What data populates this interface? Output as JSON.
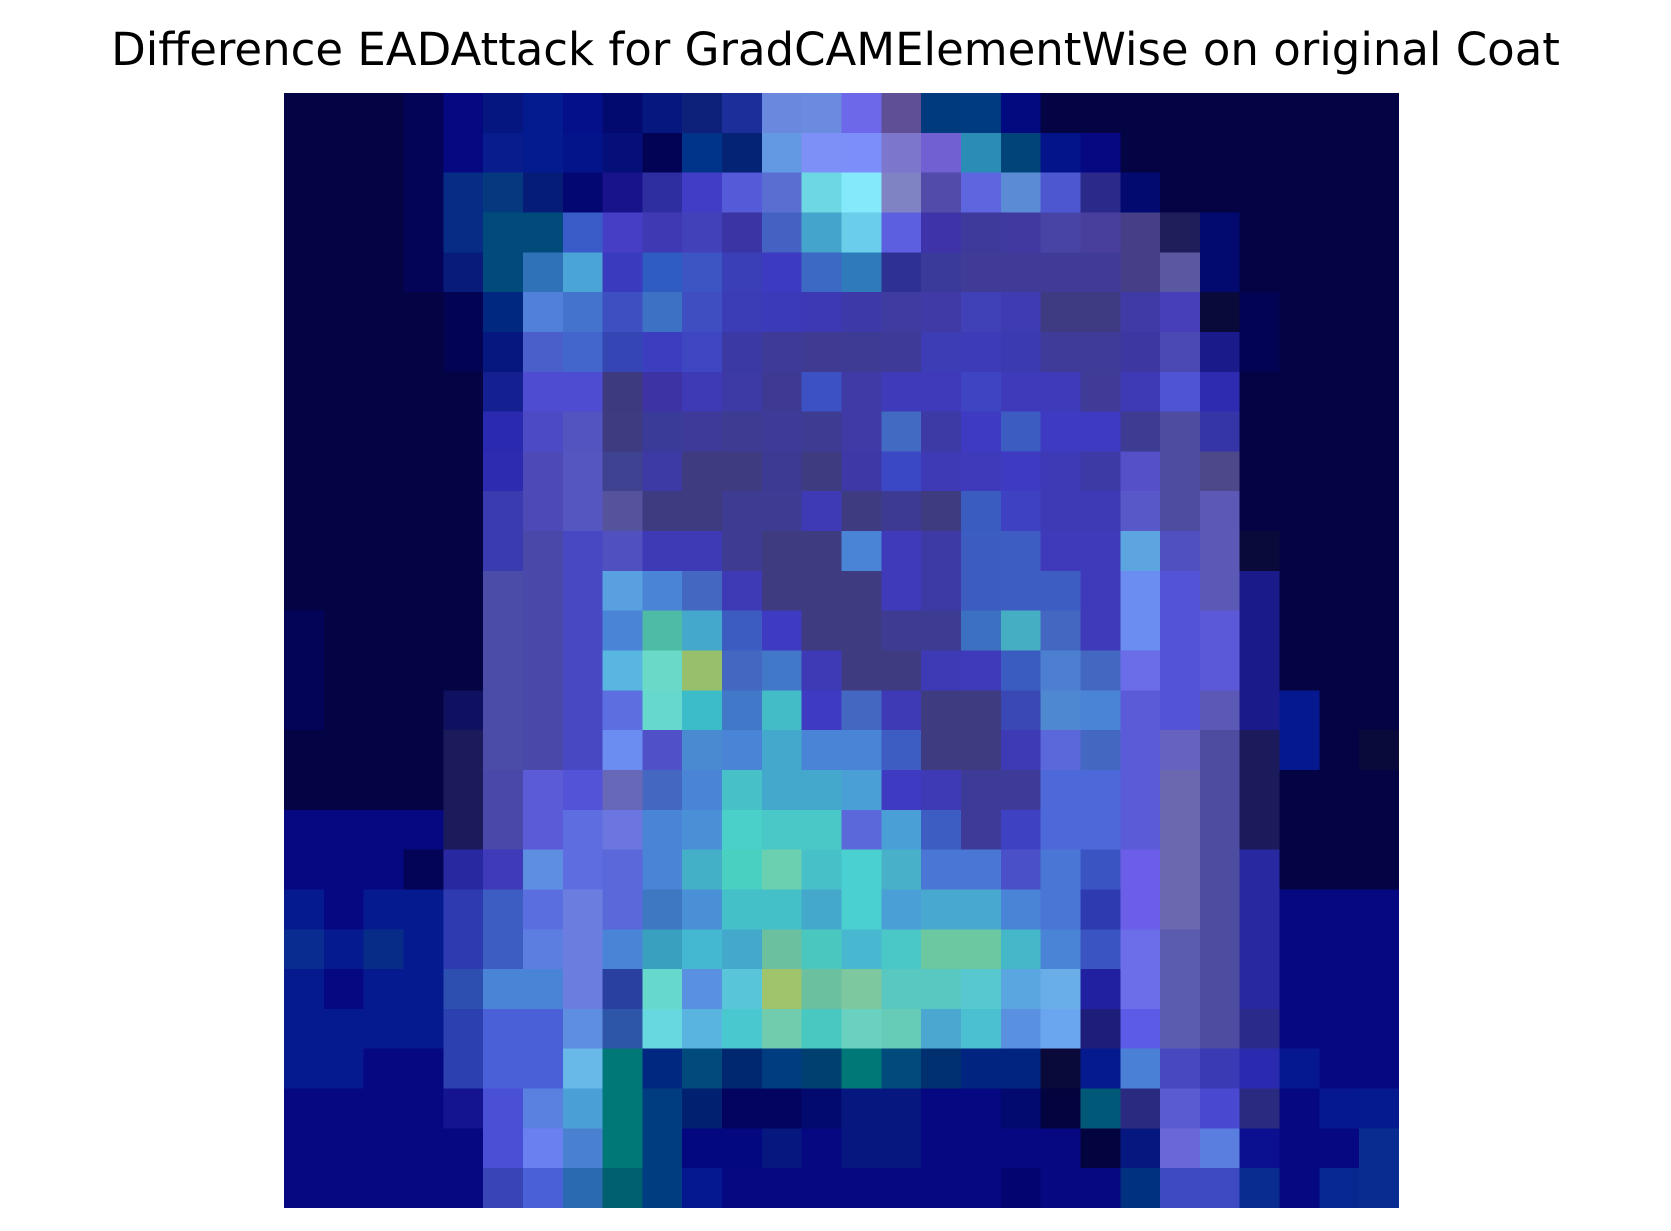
{
  "title": "Difference EADAttack for GradCAMElementWise on original Coat",
  "image": {
    "rows": 28,
    "cols": 28,
    "pixels": [
      [
        "040444",
        "040444",
        "040444",
        "030357",
        "050880",
        "061680",
        "041b8f",
        "041089",
        "020a70",
        "061880",
        "0d207a",
        "1c2e9a",
        "6a88de",
        "6b8be0",
        "6d68e9",
        "5f4f96",
        "003a7e",
        "003b82",
        "020a80",
        "040444",
        "040444",
        "040444",
        "040444",
        "040444",
        "040444",
        "040444",
        "040444",
        "040444"
      ],
      [
        "040444",
        "040444",
        "040444",
        "030357",
        "050880",
        "081c8d",
        "041b8f",
        "03148b",
        "050f7a",
        "030355",
        "00338a",
        "042375",
        "6398e3",
        "7d90f8",
        "7c8ef9",
        "7c77cd",
        "7060d2",
        "2b8db5",
        "00447a",
        "03148b",
        "050880",
        "040444",
        "040444",
        "040444",
        "040444",
        "040444",
        "040444",
        "040444"
      ],
      [
        "040444",
        "040444",
        "040444",
        "030357",
        "062c86",
        "04397f",
        "051d76",
        "030771",
        "18128b",
        "2f2ea0",
        "423dc6",
        "545ad8",
        "5a6ed1",
        "6dd8e4",
        "84eafb",
        "7f82c3",
        "524ba9",
        "5d66df",
        "5a8bd4",
        "4d58d0",
        "2b2a8a",
        "020a70",
        "040444",
        "040444",
        "040444",
        "040444",
        "040444",
        "040444"
      ],
      [
        "040444",
        "040444",
        "040444",
        "030357",
        "062c86",
        "004a7c",
        "004a7c",
        "3a5cc9",
        "463fc5",
        "3f39b3",
        "4341ba",
        "3b34a4",
        "4462c2",
        "44a4cb",
        "6acde9",
        "5c5fe0",
        "3e33a8",
        "3e3a9b",
        "3f39a0",
        "4744a5",
        "483f9d",
        "463f88",
        "1e1e5a",
        "020a70",
        "040444",
        "040444",
        "040444",
        "040444"
      ],
      [
        "040444",
        "040444",
        "040444",
        "030357",
        "081b7b",
        "004a7c",
        "2f72b8",
        "4aa5d6",
        "3a3abf",
        "2f5cc0",
        "3c55c2",
        "3a3fb8",
        "3c3ac0",
        "3c69c3",
        "2f7aba",
        "2f3192",
        "3a3a9b",
        "3f3b96",
        "3f3b96",
        "3f3b96",
        "3f3b96",
        "463f88",
        "5a58a0",
        "020a70",
        "040444",
        "040444",
        "040444",
        "040444"
      ],
      [
        "040444",
        "040444",
        "040444",
        "040444",
        "030353",
        "002880",
        "5080d9",
        "4373cd",
        "3e4fc2",
        "3c71c3",
        "3f4fc2",
        "3b3db7",
        "3b3ab9",
        "3d38b3",
        "3e39a8",
        "3f3b9f",
        "3f3aa5",
        "4040b7",
        "3f3cb1",
        "3f3b83",
        "3f3b83",
        "3f3aa5",
        "473fb9",
        "0a0a3a",
        "030353",
        "040444",
        "040444",
        "040444"
      ],
      [
        "040444",
        "040444",
        "040444",
        "040444",
        "030353",
        "061880",
        "4a5fc9",
        "4366cc",
        "3546b4",
        "3c3dbf",
        "3e46c2",
        "3b3aa5",
        "3e3b98",
        "3f3b93",
        "3e3b94",
        "3e3b98",
        "3d3db5",
        "3e3bb9",
        "3c3ab1",
        "3f3b98",
        "3f3b98",
        "3d38a1",
        "4b4ab5",
        "1b1a8a",
        "030353",
        "040444",
        "040444",
        "040444"
      ],
      [
        "040444",
        "040444",
        "040444",
        "040444",
        "040444",
        "14208f",
        "4e4cd0",
        "4e4cd0",
        "3e3a80",
        "3d33a5",
        "3e3ab5",
        "3e3aa5",
        "3e3a93",
        "3c52c4",
        "3f3aa5",
        "3f3ab9",
        "3f3ab9",
        "3f44c2",
        "3f3ab9",
        "3f3ab9",
        "3f3b96",
        "3e3ab5",
        "4f54d4",
        "2f2bb0",
        "040444",
        "040444",
        "040444",
        "040444"
      ],
      [
        "040444",
        "040444",
        "040444",
        "040444",
        "040444",
        "2a2ab0",
        "4d4ac6",
        "5454c0",
        "3e3b80",
        "3a3a99",
        "3e3a99",
        "3e3b93",
        "3e3b98",
        "3e3b93",
        "3f3aa5",
        "426ac3",
        "3e3aa5",
        "3e3ac2",
        "3c5cc2",
        "3f3ac2",
        "3f3ac2",
        "3e3b93",
        "4d4ca1",
        "3535a8",
        "040444",
        "040444",
        "040444",
        "040444"
      ],
      [
        "040444",
        "040444",
        "040444",
        "040444",
        "040444",
        "2d2cb0",
        "4d4ab8",
        "5656c0",
        "3e4290",
        "3d3aa5",
        "3e3b80",
        "3e3b80",
        "3d3a93",
        "3e3b80",
        "3d38a5",
        "3a48c5",
        "3e3ab5",
        "3e3ab9",
        "3e3ac2",
        "3e3ab5",
        "3e3aa5",
        "5550c8",
        "4d4ca1",
        "4c4889",
        "040444",
        "040444",
        "040444",
        "040444"
      ],
      [
        "040444",
        "040444",
        "040444",
        "040444",
        "040444",
        "3b3bb0",
        "4d4ab8",
        "5656c0",
        "56539d",
        "3e3b80",
        "3e3b80",
        "3e3b93",
        "3e3b93",
        "3e3ab5",
        "3e3b80",
        "3d3a93",
        "3e3b80",
        "3a5cc0",
        "3e42c2",
        "3e3ab5",
        "3e3ab5",
        "5858c9",
        "4d4ca1",
        "5b59b5",
        "040444",
        "040444",
        "040444",
        "040444"
      ],
      [
        "040444",
        "040444",
        "040444",
        "040444",
        "040444",
        "3b3bb0",
        "4a48a8",
        "4848c2",
        "5050c0",
        "3e3ab5",
        "3e3ab5",
        "3e3b93",
        "3e3b80",
        "3e3b80",
        "4a84d6",
        "3e3ab9",
        "3e3aa5",
        "3c5cc2",
        "3e5dc2",
        "3e3ab9",
        "3e3ab9",
        "5ca5e0",
        "5050c0",
        "5b59b5",
        "0a0a3a",
        "040444",
        "040444",
        "040444"
      ],
      [
        "040444",
        "040444",
        "040444",
        "040444",
        "040444",
        "4b4ca8",
        "4a48a8",
        "4848c2",
        "58a0e0",
        "4a84d6",
        "4468c2",
        "3e3ab5",
        "3e3b80",
        "3e3b80",
        "3e3b80",
        "3e3ab9",
        "3e3aa5",
        "3c5cc2",
        "3e5dc2",
        "3e5dc2",
        "3e3ab9",
        "6b8cf0",
        "5353d8",
        "5b59b5",
        "1b1a8a",
        "040444",
        "040444",
        "040444"
      ],
      [
        "030357",
        "040444",
        "040444",
        "040444",
        "040444",
        "4b4ca8",
        "4a48a8",
        "4848c2",
        "4a84d6",
        "4dbba6",
        "44a8cc",
        "3c5cc2",
        "3e3ac2",
        "3e3b80",
        "3e3b80",
        "3e3b93",
        "3e3b93",
        "3c70c0",
        "46aec2",
        "4468c2",
        "3e3ab9",
        "6b8cf0",
        "5353d8",
        "5b59d8",
        "1b1a8a",
        "040444",
        "040444",
        "040444"
      ],
      [
        "030357",
        "040444",
        "040444",
        "040444",
        "040444",
        "4b4ca8",
        "4a48a8",
        "4848c2",
        "58b6e0",
        "6bd9c8",
        "98c06c",
        "4468c2",
        "4178c8",
        "3e3ab5",
        "3e3b80",
        "3e3b80",
        "3e3ab5",
        "3e3ab9",
        "3a5cc0",
        "4d7fd0",
        "4468c2",
        "6b6ce8",
        "5353d8",
        "5b59d8",
        "1b1a8a",
        "040444",
        "040444",
        "040444"
      ],
      [
        "030357",
        "040444",
        "040444",
        "040444",
        "101060",
        "4b4ca8",
        "4a48a8",
        "4848c2",
        "5c6ee0",
        "66d9cc",
        "3cbcc8",
        "4178c8",
        "43bcc8",
        "3e3ac2",
        "4468c2",
        "3e3ab5",
        "3e3b80",
        "3e3b80",
        "3a48b5",
        "4d88d0",
        "4a84d6",
        "5b5bd8",
        "5353d8",
        "5b59b5",
        "1b1a8a",
        "061890",
        "040444",
        "040444"
      ],
      [
        "040444",
        "040444",
        "040444",
        "040444",
        "1b1a5a",
        "4b4ca8",
        "4a48a8",
        "4848c2",
        "6b8cf0",
        "5050c8",
        "4a8ad0",
        "4a84d6",
        "44a8cc",
        "4a84d6",
        "4a84d6",
        "3e5dc2",
        "3e3b80",
        "3e3b80",
        "3e3ab5",
        "5b68d9",
        "4468c2",
        "5b5bd8",
        "6662c0",
        "4d4ca1",
        "1b1a5a",
        "061890",
        "040444",
        "0a0a3a"
      ],
      [
        "040444",
        "040444",
        "040444",
        "040444",
        "1b1a5a",
        "4a48a8",
        "5b5bd8",
        "5353d8",
        "6868b8",
        "4468c2",
        "4a84d6",
        "48c0c8",
        "44a8cc",
        "44a8cc",
        "4aa0d6",
        "3e3ac2",
        "3e3ab5",
        "3e3b98",
        "3e3b98",
        "4d68d9",
        "4d68d9",
        "5b5bd8",
        "6b68b0",
        "4d4ca1",
        "1b1a5a",
        "040444",
        "040444",
        "040444"
      ],
      [
        "050880",
        "050880",
        "050880",
        "050880",
        "1b1a5a",
        "4a48a8",
        "5b5bd8",
        "5e6ee0",
        "6b76e0",
        "4a84d6",
        "4a90d6",
        "4ad0c8",
        "4ac8c8",
        "4ac8c8",
        "5b68d9",
        "4aa0d6",
        "3e5dc2",
        "3e3b98",
        "3e42c2",
        "4d68d9",
        "4d68d9",
        "5b5bd8",
        "6b68b0",
        "4d4ca1",
        "1b1a5a",
        "040444",
        "040444",
        "040444"
      ],
      [
        "050880",
        "050880",
        "050880",
        "030357",
        "2828a0",
        "3e3ab9",
        "5e8ee0",
        "5e6ee0",
        "5b68d9",
        "4a84d6",
        "44b0c8",
        "4ad0c0",
        "6bd0b0",
        "48c0c8",
        "4ad0d0",
        "48b0c8",
        "4a76d6",
        "4a76d6",
        "4a50c8",
        "4a76d6",
        "3a55c2",
        "6b5ee8",
        "6b68b0",
        "4d4ca1",
        "2828a0",
        "040444",
        "040444",
        "040444"
      ],
      [
        "061a90",
        "050880",
        "061a90",
        "061a90",
        "2d3ab0",
        "3e5dc2",
        "5b6ee0",
        "6b7ee0",
        "5b68d9",
        "3e78c2",
        "4a90d6",
        "44c0c8",
        "44c0c8",
        "44a8cc",
        "4ad0d0",
        "4aa0d6",
        "48a8d0",
        "48a8d0",
        "4a84d6",
        "4a76d6",
        "2d3ab0",
        "6b5ee8",
        "6b68b0",
        "4d4ca1",
        "2828a0",
        "050880",
        "050880",
        "050880"
      ],
      [
        "082c90",
        "061a90",
        "062c88",
        "061a90",
        "2d3ab0",
        "3e5dc2",
        "5b7ee0",
        "6b7ee0",
        "4a84d6",
        "3aa0c0",
        "44b8d0",
        "44a8cc",
        "6bc0a0",
        "4ac8c0",
        "48b8d0",
        "4ac8c8",
        "6bc8a0",
        "6bc8a0",
        "44b8c8",
        "4a84d6",
        "3a55c2",
        "6b6ee8",
        "5b5bb0",
        "4d4ca1",
        "2828a0",
        "050880",
        "050880",
        "050880"
      ],
      [
        "061a90",
        "050880",
        "061a90",
        "061a90",
        "2d50b0",
        "4a84d6",
        "4a84d6",
        "6b7ee0",
        "2a40a0",
        "66d9cc",
        "5a90e0",
        "58c6d8",
        "a0c46c",
        "6bc0a0",
        "7ec8a0",
        "58c8c0",
        "58c8c0",
        "58c8d0",
        "5aa6e0",
        "6aaee8",
        "2020a0",
        "6b6ee8",
        "5b5bb0",
        "4d4ca1",
        "2828a0",
        "050880",
        "050880",
        "050880"
      ],
      [
        "061a90",
        "061a90",
        "061a90",
        "061a90",
        "2d40b0",
        "4a60d6",
        "4a60d6",
        "5e8ee0",
        "2d55a8",
        "68d8e0",
        "5ab4e0",
        "4ac8d0",
        "70ccac",
        "48c8c0",
        "6ad0c0",
        "66ccb8",
        "4aa8d0",
        "4ac0d0",
        "5a90e0",
        "6aa6f0",
        "1e1e7a",
        "5b5be8",
        "5b5bb0",
        "4d4ca1",
        "2a2a8a",
        "050880",
        "050880",
        "050880"
      ],
      [
        "061a90",
        "061a90",
        "050880",
        "050880",
        "2d40b0",
        "4a60d6",
        "4a60d6",
        "68b8e8",
        "007878",
        "002880",
        "004a7c",
        "002870",
        "003d80",
        "004070",
        "007878",
        "004a7c",
        "003070",
        "002480",
        "002480",
        "0a0a3a",
        "061a90",
        "4a80d6",
        "4848c0",
        "3a3ab5",
        "2a2ab0",
        "061890",
        "050880",
        "050880"
      ],
      [
        "050880",
        "050880",
        "050880",
        "050880",
        "141490",
        "4a50d6",
        "5a80e0",
        "4aa0d6",
        "007878",
        "003d80",
        "002070",
        "020460",
        "020460",
        "020a70",
        "061880",
        "061880",
        "050880",
        "050880",
        "020a70",
        "030340",
        "005878",
        "2a2a80",
        "5b5bd0",
        "4848d0",
        "2a2a80",
        "050880",
        "061890",
        "061a90"
      ],
      [
        "050880",
        "050880",
        "050880",
        "050880",
        "050880",
        "4a50d6",
        "6a80f0",
        "4a80d0",
        "007878",
        "003d80",
        "040880",
        "040880",
        "061880",
        "050880",
        "061880",
        "061880",
        "050880",
        "050880",
        "050880",
        "050880",
        "030340",
        "061880",
        "6a68d8",
        "5a7ee0",
        "0a1090",
        "050880",
        "050880",
        "082c90"
      ],
      [
        "050880",
        "050880",
        "050880",
        "050880",
        "050880",
        "3a45b5",
        "4a60d6",
        "2a6ab0",
        "006070",
        "003d80",
        "061890",
        "050880",
        "050880",
        "050880",
        "050880",
        "050880",
        "050880",
        "050880",
        "040470",
        "050880",
        "050880",
        "003080",
        "3e4ac2",
        "3e4ac2",
        "082c90",
        "050880",
        "062890",
        "082c90"
      ]
    ]
  }
}
